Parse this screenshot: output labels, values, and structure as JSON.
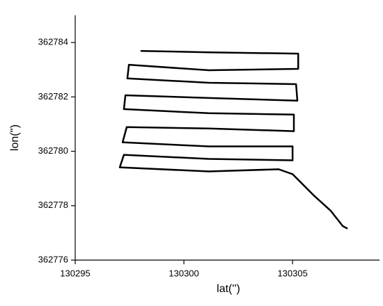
{
  "chart_data": {
    "type": "line",
    "xlabel": "lat('')",
    "ylabel": "lon('')",
    "color": "#000000",
    "x": [
      130298.04,
      130301.15,
      130305.26,
      130305.26,
      130301.15,
      130297.47,
      130297.4,
      130301.15,
      130305.16,
      130305.22,
      130301.15,
      130297.31,
      130297.24,
      130301.15,
      130305.06,
      130305.06,
      130301.15,
      130297.37,
      130297.18,
      130301.15,
      130305.0,
      130305.0,
      130301.15,
      130297.24,
      130297.05,
      130301.15,
      130304.36,
      130305.0,
      130305.96,
      130306.76,
      130307.31,
      130307.5
    ],
    "values": [
      362783.69,
      362783.64,
      362783.59,
      362783.03,
      362782.98,
      362783.18,
      362782.68,
      362782.52,
      362782.47,
      362781.86,
      362781.96,
      362782.06,
      362781.55,
      362781.4,
      362781.35,
      362780.74,
      362780.84,
      362780.89,
      362780.33,
      362780.18,
      362780.18,
      362779.67,
      362779.72,
      362779.87,
      362779.41,
      362779.26,
      362779.34,
      362779.16,
      362778.39,
      362777.81,
      362777.25,
      362777.17
    ],
    "xlim": [
      130295,
      130309
    ],
    "ylim": [
      362776,
      362785
    ],
    "xticks": [
      130295,
      130300,
      130305
    ],
    "yticks": [
      362776,
      362778,
      362780,
      362782,
      362784
    ]
  }
}
